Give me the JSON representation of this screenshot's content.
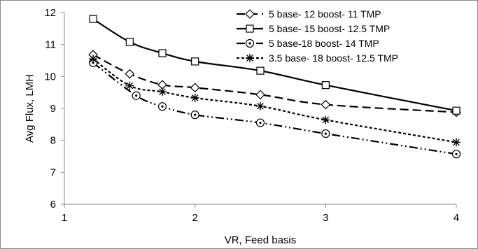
{
  "chart_data": {
    "type": "line",
    "title": "",
    "xlabel": "VR, Feed basis",
    "ylabel": "Avg Flux, LMH",
    "xlim": [
      1,
      4
    ],
    "ylim": [
      6,
      12
    ],
    "x_ticks": [
      1,
      2,
      3,
      4
    ],
    "y_ticks": [
      6,
      7,
      8,
      9,
      10,
      11,
      12
    ],
    "grid": false,
    "legend_position": "top-right",
    "series": [
      {
        "name": "5 base- 12 boost- 11 TMP",
        "marker": "diamond",
        "line_style": "long-dash",
        "color": "#000000",
        "x": [
          1.22,
          1.5,
          1.75,
          2.0,
          2.5,
          3.0,
          4.0
        ],
        "y": [
          10.68,
          10.08,
          9.74,
          9.65,
          9.43,
          9.12,
          8.88
        ]
      },
      {
        "name": "5 base- 15 boost- 12.5 TMP",
        "marker": "square",
        "line_style": "solid",
        "color": "#000000",
        "x": [
          1.22,
          1.5,
          1.75,
          2.0,
          2.5,
          3.0,
          4.0
        ],
        "y": [
          11.8,
          11.08,
          10.73,
          10.47,
          10.18,
          9.73,
          8.93
        ]
      },
      {
        "name": "5 base-18 boost- 14 TMP",
        "marker": "circle",
        "line_style": "dash-dot-dot",
        "color": "#000000",
        "x": [
          1.22,
          1.55,
          1.75,
          2.0,
          2.5,
          3.0,
          4.0
        ],
        "y": [
          10.43,
          9.4,
          9.06,
          8.8,
          8.55,
          8.21,
          7.57
        ]
      },
      {
        "name": "3.5 base- 18 boost- 12.5 TMP",
        "marker": "asterisk",
        "line_style": "short-dash",
        "color": "#000000",
        "x": [
          1.22,
          1.5,
          1.75,
          2.0,
          2.5,
          3.0,
          4.0
        ],
        "y": [
          10.55,
          9.71,
          9.52,
          9.33,
          9.07,
          8.64,
          7.94
        ]
      }
    ]
  }
}
